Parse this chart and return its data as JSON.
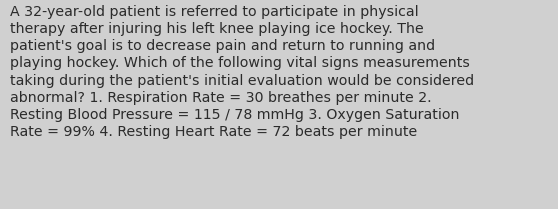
{
  "lines": [
    "A 32-year-old patient is referred to participate in physical",
    "therapy after injuring his left knee playing ice hockey. The",
    "patient's goal is to decrease pain and return to running and",
    "playing hockey. Which of the following vital signs measurements",
    "taking during the patient's initial evaluation would be considered",
    "abnormal? 1. Respiration Rate = 30 breathes per minute 2.",
    "Resting Blood Pressure = 115 / 78 mmHg 3. Oxygen Saturation",
    "Rate = 99% 4. Resting Heart Rate = 72 beats per minute"
  ],
  "background_color": "#d0d0d0",
  "text_color": "#2b2b2b",
  "font_size": 10.2,
  "font_family": "DejaVu Sans",
  "fig_width": 5.58,
  "fig_height": 2.09,
  "dpi": 100
}
